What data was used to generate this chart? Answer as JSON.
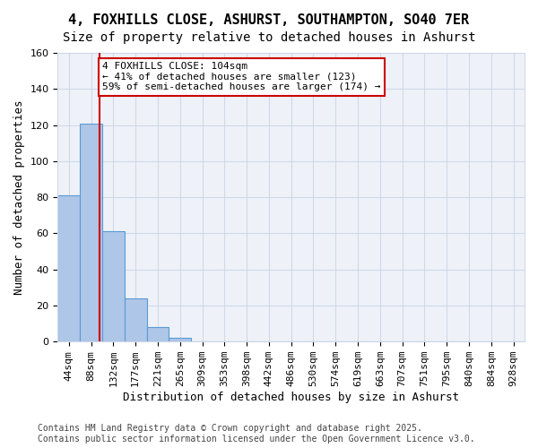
{
  "title": "4, FOXHILLS CLOSE, ASHURST, SOUTHAMPTON, SO40 7ER",
  "subtitle": "Size of property relative to detached houses in Ashurst",
  "xlabel": "Distribution of detached houses by size in Ashurst",
  "ylabel": "Number of detached properties",
  "bins": [
    "44sqm",
    "88sqm",
    "132sqm",
    "177sqm",
    "221sqm",
    "265sqm",
    "309sqm",
    "353sqm",
    "398sqm",
    "442sqm",
    "486sqm",
    "530sqm",
    "574sqm",
    "619sqm",
    "663sqm",
    "707sqm",
    "751sqm",
    "795sqm",
    "840sqm",
    "884sqm",
    "928sqm"
  ],
  "values": [
    81,
    121,
    61,
    24,
    8,
    2,
    0,
    0,
    0,
    0,
    0,
    0,
    0,
    0,
    0,
    0,
    0,
    0,
    0,
    0,
    0
  ],
  "bar_color": "#aec6e8",
  "bar_edge_color": "#5b9bd5",
  "grid_color": "#d0d8e8",
  "background_color": "#eef2f8",
  "vline_x": 1.36,
  "vline_color": "#cc0000",
  "annotation_text": "4 FOXHILLS CLOSE: 104sqm\n← 41% of detached houses are smaller (123)\n59% of semi-detached houses are larger (174) →",
  "annotation_box_color": "#ffffff",
  "annotation_border_color": "#cc0000",
  "ylim": [
    0,
    160
  ],
  "yticks": [
    0,
    20,
    40,
    60,
    80,
    100,
    120,
    140,
    160
  ],
  "footnote": "Contains HM Land Registry data © Crown copyright and database right 2025.\nContains public sector information licensed under the Open Government Licence v3.0.",
  "title_fontsize": 11,
  "subtitle_fontsize": 10,
  "axis_label_fontsize": 9,
  "tick_fontsize": 8,
  "annotation_fontsize": 8,
  "footnote_fontsize": 7
}
